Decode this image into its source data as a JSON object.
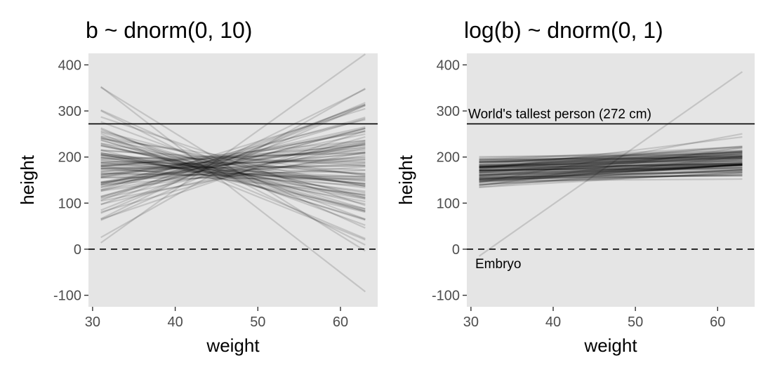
{
  "chart_data": [
    {
      "type": "line",
      "title": "b ~ dnorm(0, 10)",
      "xlabel": "weight",
      "ylabel": "height",
      "xlim": [
        29.5,
        64.5
      ],
      "ylim": [
        -125,
        425
      ],
      "xticks": [
        30,
        40,
        50,
        60
      ],
      "yticks": [
        -100,
        0,
        100,
        200,
        300,
        400
      ],
      "xbar": 45,
      "x_range": [
        31,
        63
      ],
      "series_count": 100,
      "lines_intercept_at_xbar": 178,
      "slopes": [
        -13.9,
        -11.1,
        -9.1,
        -8.0,
        -7.2,
        -6.6,
        -6.0,
        -5.6,
        -5.2,
        -4.8,
        -4.5,
        -4.2,
        -3.9,
        -3.6,
        -3.4,
        -3.2,
        -2.9,
        -2.7,
        -2.5,
        -2.3,
        -2.1,
        -1.9,
        -1.7,
        -1.5,
        -1.3,
        -1.2,
        -1.0,
        -0.8,
        -0.6,
        -0.5,
        -0.3,
        -0.1,
        0.0,
        0.2,
        0.4,
        0.5,
        0.7,
        0.9,
        1.0,
        1.2,
        1.4,
        1.6,
        1.8,
        2.0,
        2.2,
        2.4,
        2.6,
        2.8,
        3.1,
        3.3,
        3.5,
        3.8,
        4.1,
        4.4,
        4.7,
        5.1,
        5.5,
        6.0,
        6.5,
        7.1,
        7.8,
        8.8,
        10.1,
        12.8,
        -3.0,
        3.0,
        -2.0,
        2.0,
        -4.0,
        4.0,
        -1.0,
        1.0,
        -5.0,
        5.0,
        -0.4,
        0.4,
        -6.5,
        6.8,
        -2.6,
        2.6,
        -3.5,
        3.6,
        -1.6,
        1.6,
        -4.6,
        4.6,
        -0.7,
        0.7,
        -7.5,
        7.5,
        -2.2,
        2.3,
        -5.4,
        5.3,
        -1.4,
        1.4,
        -3.8,
        3.9,
        -0.2,
        0.2
      ],
      "intercept_jitter": [
        -20,
        18,
        -5,
        12,
        -28,
        6,
        25,
        -14,
        3,
        -9,
        15,
        -22,
        8,
        -3,
        20,
        -17,
        11,
        -7,
        27,
        -11,
        1,
        -25,
        14,
        -2,
        9,
        -19,
        22,
        -6,
        5,
        -13,
        17,
        -24,
        10,
        -1,
        23,
        -16,
        7,
        -8,
        19,
        -21,
        4,
        -12,
        26,
        -4,
        13,
        -18,
        2,
        -10,
        21,
        -27,
        16,
        -15,
        -23,
        24,
        0,
        -26,
        28,
        -29,
        19,
        6,
        -6,
        11,
        -11,
        15,
        -15,
        2,
        -2,
        8,
        -8,
        12,
        -12,
        4,
        -4,
        18,
        -18,
        9,
        -9,
        14,
        -14,
        3,
        -3,
        7,
        -7,
        13,
        -13,
        1,
        -1,
        20,
        -20,
        5,
        -5,
        16,
        -16,
        10,
        -10,
        22,
        -22,
        17,
        -17,
        0
      ],
      "hlines": [
        {
          "y": 272,
          "style": "solid"
        },
        {
          "y": 0,
          "style": "dashed"
        }
      ],
      "annotations": []
    },
    {
      "type": "line",
      "title": "log(b) ~ dnorm(0, 1)",
      "xlabel": "weight",
      "ylabel": "height",
      "xlim": [
        29.5,
        64.5
      ],
      "ylim": [
        -125,
        425
      ],
      "xticks": [
        30,
        40,
        50,
        60
      ],
      "yticks": [
        -100,
        0,
        100,
        200,
        300,
        400
      ],
      "xbar": 45,
      "x_range": [
        31,
        63
      ],
      "series_count": 100,
      "lines_intercept_at_xbar": 178,
      "slopes": [
        0.04,
        0.06,
        0.08,
        0.1,
        0.12,
        0.14,
        0.16,
        0.18,
        0.2,
        0.22,
        0.25,
        0.28,
        0.3,
        0.33,
        0.36,
        0.39,
        0.42,
        0.45,
        0.48,
        0.52,
        0.55,
        0.58,
        0.62,
        0.66,
        0.7,
        0.74,
        0.78,
        0.82,
        0.86,
        0.9,
        0.95,
        1.0,
        1.05,
        1.1,
        1.16,
        1.22,
        1.3,
        1.38,
        1.48,
        1.6,
        1.75,
        1.95,
        2.2,
        2.6,
        3.3,
        12.5,
        0.35,
        0.5,
        0.65,
        0.8,
        0.95,
        1.1,
        0.3,
        0.45,
        0.6,
        0.75,
        0.9,
        1.05,
        0.2,
        0.4,
        0.55,
        0.7,
        0.85,
        1.0,
        1.15,
        0.25,
        0.38,
        0.52,
        0.68,
        0.82,
        0.98,
        1.12,
        0.15,
        0.32,
        0.48,
        0.62,
        0.78,
        0.92,
        1.08,
        0.22,
        0.42,
        0.58,
        0.72,
        0.88,
        1.02,
        0.28,
        0.46,
        0.64,
        0.76,
        0.94,
        0.18,
        0.36,
        0.54,
        0.7,
        0.86,
        1.04,
        0.26,
        0.44,
        0.6,
        0.8
      ],
      "intercept_jitter": [
        -20,
        18,
        -5,
        12,
        -28,
        6,
        25,
        -14,
        3,
        -9,
        15,
        -22,
        8,
        -3,
        20,
        -17,
        11,
        -7,
        27,
        -11,
        1,
        -25,
        14,
        -2,
        9,
        -19,
        22,
        -6,
        5,
        -13,
        17,
        -24,
        10,
        -1,
        23,
        -16,
        7,
        -8,
        19,
        -21,
        4,
        -12,
        26,
        -4,
        13,
        -18,
        2,
        -10,
        21,
        -27,
        16,
        -15,
        -23,
        24,
        0,
        -26,
        28,
        -29,
        19,
        6,
        -6,
        11,
        -11,
        15,
        -15,
        2,
        -2,
        8,
        -8,
        12,
        -12,
        4,
        -4,
        18,
        -18,
        9,
        -9,
        14,
        -14,
        3,
        -3,
        7,
        -7,
        13,
        -13,
        1,
        -1,
        20,
        -20,
        5,
        -5,
        16,
        -16,
        10,
        -10,
        22,
        -22,
        17,
        -17,
        0
      ],
      "hlines": [
        {
          "y": 272,
          "style": "solid"
        },
        {
          "y": 0,
          "style": "dashed"
        }
      ],
      "annotations": [
        {
          "text": "World's tallest person (272 cm)",
          "y": 272,
          "anchor": "above-left"
        },
        {
          "text": "Embryo",
          "y": 0,
          "anchor": "below-left"
        }
      ]
    }
  ],
  "style": {
    "panel_bg": "#e5e5e5",
    "line_color": "#000000",
    "line_opacity": 0.14,
    "tick_label_color": "#4d4d4d"
  }
}
